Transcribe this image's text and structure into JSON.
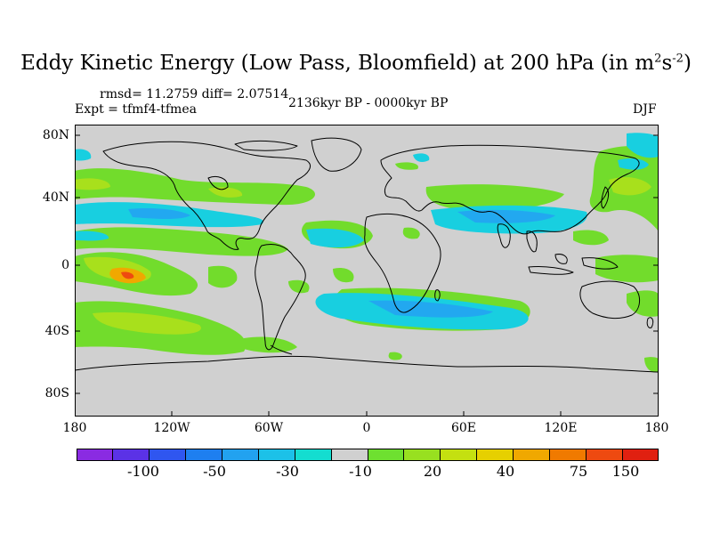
{
  "title": {
    "main": "Eddy Kinetic Energy (Low Pass, Bloomfield) at 200 hPa (in m",
    "sup1": "2",
    "mid": "s",
    "sup2": "-2",
    "end": ")"
  },
  "stats": {
    "rmsd_diff": "rmsd= 11.2759 diff= 2.07514"
  },
  "experiment": "Expt = tfmf4-tfmea",
  "period": "2136kyr BP - 0000kyr BP",
  "season": "DJF",
  "lat_ticks": [
    "80N",
    "40N",
    "0",
    "40S",
    "80S"
  ],
  "lon_ticks": [
    "180",
    "120W",
    "60W",
    "0",
    "60E",
    "120E",
    "180"
  ],
  "colorbar": {
    "colors": [
      "#8a2be2",
      "#5b32e6",
      "#2f56f0",
      "#1e7ff0",
      "#22a2f0",
      "#1cc1e8",
      "#14ddd0",
      "#d0d0d0",
      "#6ee030",
      "#98e020",
      "#c4e010",
      "#e6d000",
      "#f0a800",
      "#f07a00",
      "#ee4a10",
      "#e02010"
    ],
    "labels": [
      "-100",
      "-50",
      "-30",
      "-10",
      "20",
      "40",
      "75",
      "150"
    ]
  },
  "colors": {
    "background_field": "#d0d0d0",
    "green": "#72dc2c",
    "light_green": "#a8e01c",
    "cyan": "#18cfe0",
    "light_blue": "#22a8f0",
    "orange": "#f0a800",
    "red": "#ee4a10"
  }
}
